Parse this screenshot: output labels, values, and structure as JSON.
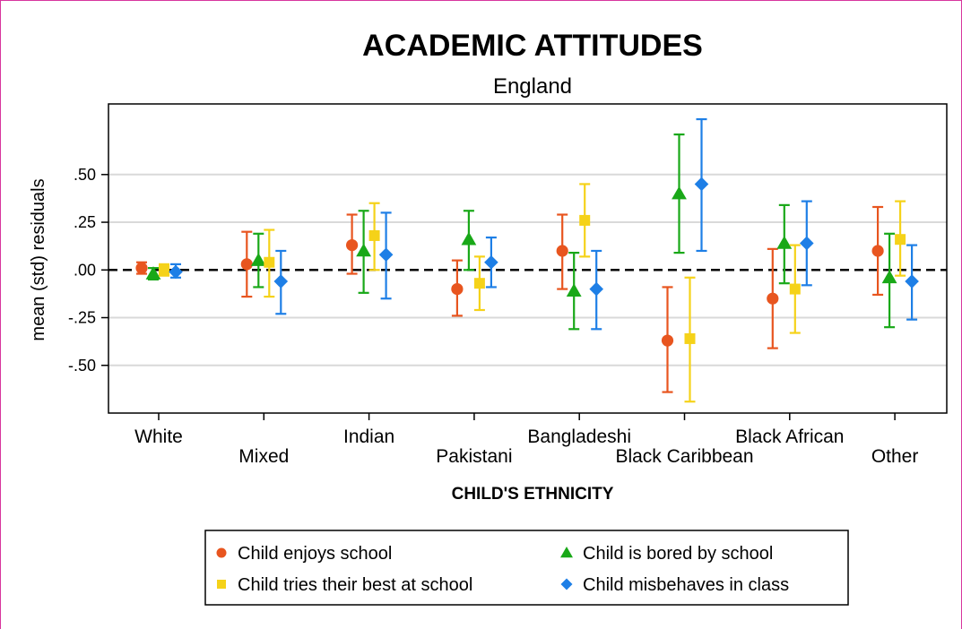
{
  "chart_data": {
    "type": "errorbar",
    "title": "ACADEMIC ATTITUDES",
    "subtitle": "England",
    "ylabel": "mean (std) residuals",
    "xlabel": "CHILD'S ETHNICITY",
    "ylim": [
      -0.75,
      0.87
    ],
    "yticks": [
      0.5,
      0.25,
      0.0,
      -0.25,
      -0.5
    ],
    "ytick_labels": [
      ".50",
      ".25",
      ".00",
      "-.25",
      "-.50"
    ],
    "reference_line": {
      "y": 0.0,
      "style": "dashed",
      "color": "#000000"
    },
    "grid": true,
    "categories": [
      "White",
      "Mixed",
      "Indian",
      "Pakistani",
      "Bangladeshi",
      "Black Caribbean",
      "Black African",
      "Other"
    ],
    "category_label_rows": [
      0,
      1,
      0,
      1,
      0,
      1,
      0,
      1
    ],
    "series": [
      {
        "name": "Child enjoys school",
        "marker": "circle",
        "color": "#e8551f",
        "values": [
          0.01,
          0.03,
          0.13,
          -0.1,
          0.1,
          -0.37,
          -0.15,
          0.1
        ],
        "lower": [
          -0.02,
          -0.14,
          -0.02,
          -0.24,
          -0.1,
          -0.64,
          -0.41,
          -0.13
        ],
        "upper": [
          0.04,
          0.2,
          0.29,
          0.05,
          0.29,
          -0.09,
          0.11,
          0.33
        ]
      },
      {
        "name": "Child is bored by school",
        "marker": "triangle",
        "color": "#19a818",
        "values": [
          -0.02,
          0.05,
          0.1,
          0.16,
          -0.11,
          0.4,
          0.14,
          -0.04
        ],
        "lower": [
          -0.05,
          -0.09,
          -0.12,
          0.0,
          -0.31,
          0.09,
          -0.07,
          -0.3
        ],
        "upper": [
          0.01,
          0.19,
          0.31,
          0.31,
          0.09,
          0.71,
          0.34,
          0.19
        ]
      },
      {
        "name": "Child tries their best at school",
        "marker": "square",
        "color": "#f5d219",
        "values": [
          0.0,
          0.04,
          0.18,
          -0.07,
          0.26,
          -0.36,
          -0.1,
          0.16
        ],
        "lower": [
          -0.03,
          -0.14,
          0.0,
          -0.21,
          0.07,
          -0.69,
          -0.33,
          -0.03
        ],
        "upper": [
          0.03,
          0.21,
          0.35,
          0.07,
          0.45,
          -0.04,
          0.13,
          0.36
        ]
      },
      {
        "name": "Child misbehaves in class",
        "marker": "diamond",
        "color": "#1e7fe6",
        "values": [
          -0.01,
          -0.06,
          0.08,
          0.04,
          -0.1,
          0.45,
          0.14,
          -0.06
        ],
        "lower": [
          -0.04,
          -0.23,
          -0.15,
          -0.09,
          -0.31,
          0.1,
          -0.08,
          -0.26
        ],
        "upper": [
          0.03,
          0.1,
          0.3,
          0.17,
          0.1,
          0.79,
          0.36,
          0.13
        ]
      }
    ],
    "legend": {
      "position": "bottom",
      "columns": 2,
      "order": [
        0,
        1,
        2,
        3
      ]
    }
  }
}
